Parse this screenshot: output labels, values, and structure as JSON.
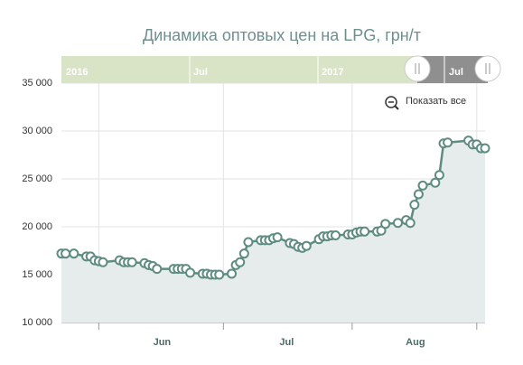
{
  "chart_data": {
    "type": "area",
    "title": "Динамика оптовых цен на LPG, грн/т",
    "reset_button": "Показать все",
    "navigator": {
      "labels": [
        "2016",
        "Jul",
        "2017",
        "Jul"
      ]
    },
    "color": "#5e8c80",
    "fill": "#e5eceb",
    "grid": true,
    "x": [
      0,
      1,
      3,
      6,
      7,
      8,
      9,
      10,
      14,
      15,
      16,
      17,
      20,
      21,
      22,
      23,
      27,
      28,
      29,
      30,
      31,
      34,
      35,
      36,
      37,
      38,
      41,
      42,
      43,
      44,
      45,
      48,
      49,
      50,
      51,
      52,
      55,
      56,
      57,
      58,
      59,
      62,
      63,
      64,
      65,
      66,
      69,
      70,
      71,
      72,
      73,
      76,
      77,
      78,
      81,
      83,
      84,
      85,
      86,
      87,
      90,
      91,
      92,
      93,
      98,
      99,
      100,
      101,
      102
    ],
    "values": [
      17200,
      17200,
      17200,
      16900,
      16900,
      16500,
      16400,
      16300,
      16500,
      16300,
      16300,
      16300,
      16200,
      16000,
      15900,
      15600,
      15600,
      15600,
      15600,
      15600,
      15200,
      15100,
      15100,
      15000,
      15000,
      15000,
      15100,
      16000,
      16300,
      17200,
      18400,
      18600,
      18600,
      18600,
      18800,
      18900,
      18300,
      18200,
      17900,
      17800,
      18000,
      18700,
      19000,
      19000,
      19100,
      19100,
      19200,
      19200,
      19400,
      19500,
      19500,
      19500,
      19600,
      20300,
      20400,
      20700,
      20400,
      22300,
      23400,
      24300,
      24600,
      25400,
      28700,
      28800,
      29000,
      28600,
      28600,
      28200,
      28200
    ],
    "xlim": [
      0,
      102
    ],
    "xticks": [
      {
        "value": 9,
        "label": "Jun"
      },
      {
        "value": 39,
        "label": "Jul"
      },
      {
        "value": 70,
        "label": "Aug"
      },
      {
        "value": 100,
        "label": ""
      }
    ],
    "ylim": [
      10000,
      35000
    ],
    "yticks": [
      {
        "value": 10000,
        "label": "10 000"
      },
      {
        "value": 15000,
        "label": "15 000"
      },
      {
        "value": 20000,
        "label": "20 000"
      },
      {
        "value": 25000,
        "label": "25 000"
      },
      {
        "value": 30000,
        "label": "30 000"
      },
      {
        "value": 35000,
        "label": "35 000"
      }
    ]
  }
}
